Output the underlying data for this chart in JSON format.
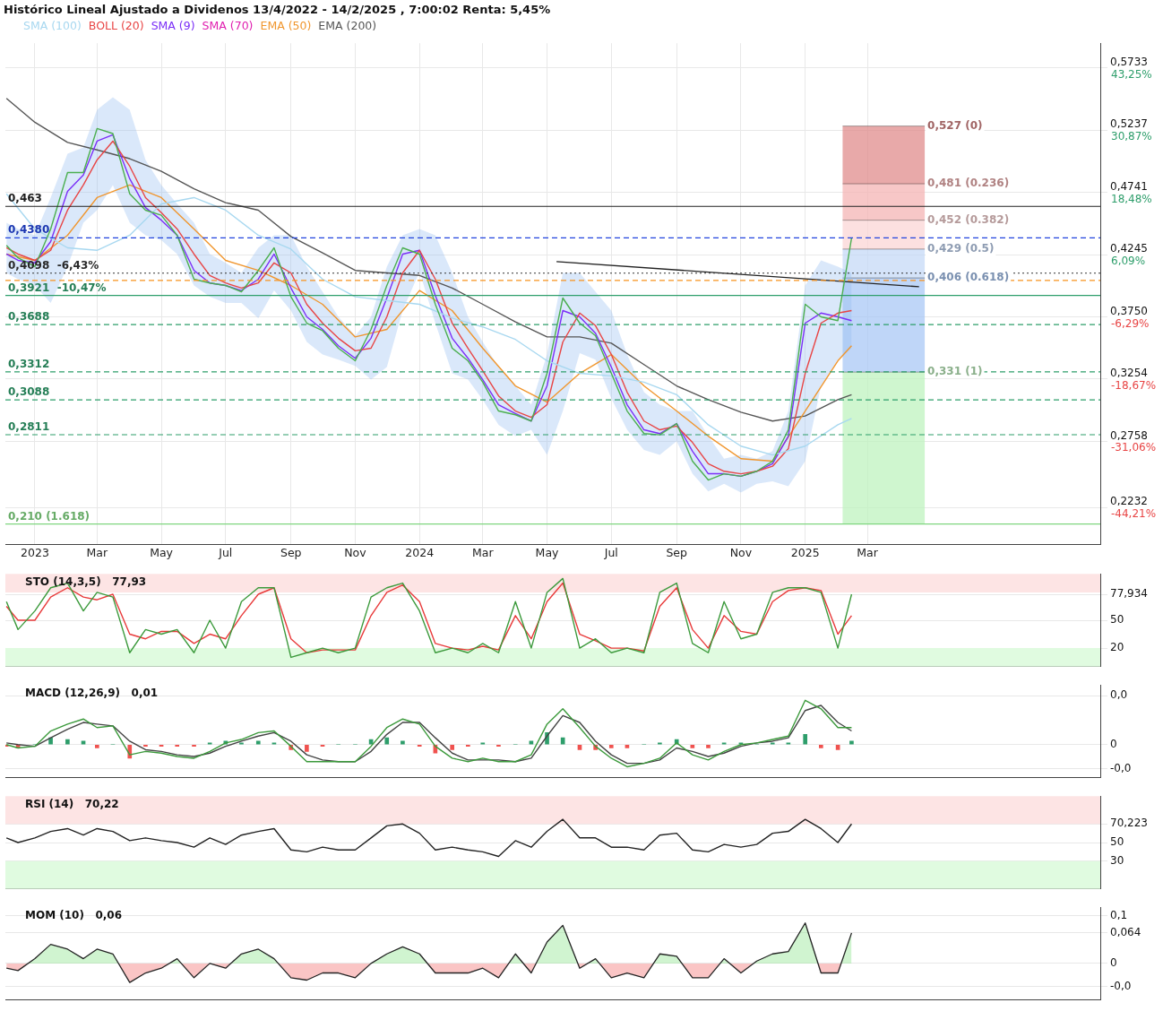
{
  "chart_data": [
    {
      "type": "line",
      "title": "Histórico Lineal Ajustado a Dividenos 13/4/2022 - 14/2/2025 , 7:00:02 Renta: 5,45%",
      "legend": "top left",
      "grid": true,
      "marker": "none",
      "x": [
        "2022-12-05",
        "2022-12-16",
        "2023-01-01",
        "2023-01-16",
        "2023-02-01",
        "2023-02-16",
        "2023-03-01",
        "2023-03-16",
        "2023-04-01",
        "2023-04-16",
        "2023-05-01",
        "2023-05-16",
        "2023-06-01",
        "2023-06-16",
        "2023-07-01",
        "2023-07-16",
        "2023-08-01",
        "2023-08-16",
        "2023-09-01",
        "2023-09-16",
        "2023-10-01",
        "2023-10-16",
        "2023-11-01",
        "2023-11-16",
        "2023-12-01",
        "2023-12-16",
        "2024-01-01",
        "2024-01-16",
        "2024-02-01",
        "2024-02-16",
        "2024-03-01",
        "2024-03-16",
        "2024-04-01",
        "2024-04-16",
        "2024-05-01",
        "2024-05-16",
        "2024-06-01",
        "2024-06-16",
        "2024-07-01",
        "2024-07-16",
        "2024-08-01",
        "2024-08-16",
        "2024-09-01",
        "2024-09-16",
        "2024-10-01",
        "2024-10-16",
        "2024-11-01",
        "2024-11-16",
        "2024-12-01",
        "2024-12-16",
        "2025-01-01",
        "2025-01-16",
        "2025-02-01",
        "2025-02-14"
      ],
      "xlim": [
        "2022-12-04",
        "2025-10-08"
      ],
      "xticks": [
        {
          "value": "2023-01-01",
          "label": "2023"
        },
        {
          "value": "2023-03-01",
          "label": "Mar"
        },
        {
          "value": "2023-05-01",
          "label": "May"
        },
        {
          "value": "2023-07-01",
          "label": "Jul"
        },
        {
          "value": "2023-09-01",
          "label": "Sep"
        },
        {
          "value": "2023-11-01",
          "label": "Nov"
        },
        {
          "value": "2024-01-01",
          "label": "2024"
        },
        {
          "value": "2024-03-01",
          "label": "Mar"
        },
        {
          "value": "2024-05-01",
          "label": "May"
        },
        {
          "value": "2024-07-01",
          "label": "Jul"
        },
        {
          "value": "2024-09-01",
          "label": "Sep"
        },
        {
          "value": "2024-11-01",
          "label": "Nov"
        },
        {
          "value": "2025-01-01",
          "label": "2025"
        },
        {
          "value": "2025-03-01",
          "label": "Mar"
        }
      ],
      "ylim": [
        0.194,
        0.593
      ],
      "yticks": [
        {
          "value": 0.2232,
          "label": "0,2232"
        },
        {
          "value": 0.2758,
          "label": "0,2758"
        },
        {
          "value": 0.3254,
          "label": "0,3254"
        },
        {
          "value": 0.375,
          "label": "0,3750"
        },
        {
          "value": 0.4245,
          "label": "0,4245"
        },
        {
          "value": 0.4741,
          "label": "0,4741"
        },
        {
          "value": 0.5237,
          "label": "0,5237"
        },
        {
          "value": 0.5733,
          "label": "0,5733"
        }
      ],
      "y2lim": [
        -51.53,
        48.16
      ],
      "y2ticks": [
        {
          "value": -44.21,
          "label": "-44,21%"
        },
        {
          "value": -31.06,
          "label": "-31,06%"
        },
        {
          "value": -18.67,
          "label": "-18,67%"
        },
        {
          "value": -6.29,
          "label": "-6,29%"
        },
        {
          "value": 6.09,
          "label": "6,09%"
        },
        {
          "value": 18.48,
          "label": "18,48%"
        },
        {
          "value": 30.87,
          "label": "30,87%"
        },
        {
          "value": 43.25,
          "label": "43,25%"
        }
      ],
      "series": [
        {
          "color": "#4caf50",
          "values": [
            0.432,
            0.422,
            0.415,
            0.445,
            0.49,
            0.49,
            0.525,
            0.521,
            0.473,
            0.46,
            0.456,
            0.44,
            0.405,
            0.402,
            0.4,
            0.395,
            0.412,
            0.43,
            0.391,
            0.37,
            0.364,
            0.35,
            0.34,
            0.365,
            0.4,
            0.43,
            0.425,
            0.385,
            0.35,
            0.34,
            0.323,
            0.3,
            0.297,
            0.292,
            0.33,
            0.39,
            0.37,
            0.36,
            0.33,
            0.3,
            0.282,
            0.281,
            0.29,
            0.26,
            0.245,
            0.25,
            0.248,
            0.252,
            0.26,
            0.285,
            0.385,
            0.375,
            0.372,
            0.438
          ]
        },
        {
          "name": "SMA (100)",
          "color": "#a8d8f0",
          "x": [
            "2022-12-05",
            "2023-01-01",
            "2023-02-01",
            "2023-03-01",
            "2023-04-01",
            "2023-05-01",
            "2023-06-01",
            "2023-07-01",
            "2023-08-01",
            "2023-09-01",
            "2023-10-01",
            "2023-11-01",
            "2023-12-01",
            "2024-01-01",
            "2024-02-01",
            "2024-03-01",
            "2024-04-01",
            "2024-05-01",
            "2024-06-01",
            "2024-07-01",
            "2024-08-01",
            "2024-09-01",
            "2024-10-01",
            "2024-11-01",
            "2024-12-01",
            "2025-01-01",
            "2025-02-01",
            "2025-02-14"
          ],
          "values": [
            0.473,
            0.445,
            0.43,
            0.428,
            0.44,
            0.465,
            0.47,
            0.46,
            0.44,
            0.429,
            0.405,
            0.391,
            0.388,
            0.385,
            0.374,
            0.367,
            0.357,
            0.34,
            0.33,
            0.328,
            0.323,
            0.313,
            0.289,
            0.272,
            0.265,
            0.272,
            0.289,
            0.294
          ]
        },
        {
          "name": "BOLL (20)",
          "color": "#e84545",
          "values": [
            0.43,
            0.425,
            0.42,
            0.428,
            0.46,
            0.48,
            0.5,
            0.515,
            0.495,
            0.47,
            0.458,
            0.445,
            0.425,
            0.408,
            0.402,
            0.398,
            0.402,
            0.418,
            0.41,
            0.385,
            0.37,
            0.358,
            0.348,
            0.35,
            0.375,
            0.41,
            0.428,
            0.405,
            0.37,
            0.35,
            0.332,
            0.312,
            0.3,
            0.295,
            0.305,
            0.355,
            0.378,
            0.368,
            0.345,
            0.315,
            0.292,
            0.285,
            0.288,
            0.275,
            0.258,
            0.252,
            0.25,
            0.252,
            0.256,
            0.27,
            0.33,
            0.37,
            0.378,
            0.38
          ],
          "upper": [
            0.45,
            0.445,
            0.44,
            0.47,
            0.505,
            0.51,
            0.54,
            0.55,
            0.54,
            0.5,
            0.48,
            0.465,
            0.45,
            0.425,
            0.418,
            0.41,
            0.43,
            0.44,
            0.44,
            0.415,
            0.395,
            0.375,
            0.36,
            0.375,
            0.415,
            0.44,
            0.445,
            0.44,
            0.41,
            0.375,
            0.355,
            0.335,
            0.32,
            0.305,
            0.345,
            0.41,
            0.41,
            0.395,
            0.38,
            0.345,
            0.315,
            0.305,
            0.3,
            0.3,
            0.28,
            0.262,
            0.265,
            0.262,
            0.268,
            0.3,
            0.4,
            0.42,
            0.415,
            0.41
          ],
          "lower": [
            0.41,
            0.405,
            0.4,
            0.386,
            0.415,
            0.45,
            0.46,
            0.48,
            0.45,
            0.44,
            0.436,
            0.425,
            0.4,
            0.391,
            0.386,
            0.386,
            0.374,
            0.396,
            0.38,
            0.355,
            0.345,
            0.341,
            0.336,
            0.325,
            0.335,
            0.38,
            0.411,
            0.37,
            0.33,
            0.325,
            0.309,
            0.289,
            0.28,
            0.285,
            0.265,
            0.3,
            0.346,
            0.341,
            0.31,
            0.285,
            0.269,
            0.265,
            0.276,
            0.25,
            0.236,
            0.242,
            0.235,
            0.242,
            0.244,
            0.24,
            0.26,
            0.32,
            0.341,
            0.35
          ]
        },
        {
          "name": "SMA (9)",
          "color": "#7b2ff7",
          "values": [
            0.425,
            0.42,
            0.418,
            0.435,
            0.475,
            0.488,
            0.515,
            0.52,
            0.485,
            0.462,
            0.452,
            0.44,
            0.412,
            0.402,
            0.4,
            0.396,
            0.405,
            0.425,
            0.398,
            0.375,
            0.365,
            0.352,
            0.342,
            0.358,
            0.39,
            0.425,
            0.428,
            0.392,
            0.358,
            0.342,
            0.325,
            0.305,
            0.298,
            0.292,
            0.32,
            0.38,
            0.375,
            0.362,
            0.335,
            0.305,
            0.285,
            0.282,
            0.29,
            0.268,
            0.25,
            0.25,
            0.248,
            0.252,
            0.258,
            0.28,
            0.37,
            0.378,
            0.375,
            0.372
          ]
        },
        {
          "name": "SMA (70)",
          "color": "#e020b0",
          "values": [
            null,
            null,
            null,
            null,
            null,
            null,
            null,
            null,
            null,
            null,
            null,
            null,
            null,
            null,
            null,
            null,
            null,
            null,
            null,
            null,
            null,
            null,
            null,
            null,
            null,
            null,
            null,
            null,
            null,
            null,
            null,
            null,
            null,
            null,
            null,
            null,
            null,
            null,
            null,
            null,
            null,
            null,
            null,
            null,
            null,
            null,
            null,
            null,
            null,
            null,
            null,
            null,
            null,
            null
          ]
        },
        {
          "name": "EMA (50)",
          "color": "#f0962e",
          "x": [
            "2022-12-05",
            "2023-01-01",
            "2023-02-01",
            "2023-03-01",
            "2023-04-01",
            "2023-05-01",
            "2023-06-01",
            "2023-07-01",
            "2023-08-01",
            "2023-09-01",
            "2023-10-01",
            "2023-11-01",
            "2023-12-01",
            "2024-01-01",
            "2024-02-01",
            "2024-03-01",
            "2024-04-01",
            "2024-05-01",
            "2024-06-01",
            "2024-07-01",
            "2024-08-01",
            "2024-09-01",
            "2024-10-01",
            "2024-11-01",
            "2024-12-01",
            "2025-01-01",
            "2025-02-01",
            "2025-02-14"
          ],
          "values": [
            0.425,
            0.42,
            0.44,
            0.47,
            0.48,
            0.47,
            0.445,
            0.42,
            0.412,
            0.4,
            0.385,
            0.359,
            0.365,
            0.396,
            0.38,
            0.35,
            0.32,
            0.307,
            0.33,
            0.345,
            0.32,
            0.3,
            0.28,
            0.262,
            0.26,
            0.3,
            0.34,
            0.352
          ]
        },
        {
          "name": "EMA (200)",
          "color": "#555555",
          "x": [
            "2022-12-05",
            "2023-01-01",
            "2023-02-01",
            "2023-03-01",
            "2023-04-01",
            "2023-05-01",
            "2023-06-01",
            "2023-07-01",
            "2023-08-01",
            "2023-09-01",
            "2023-10-01",
            "2023-11-01",
            "2023-12-01",
            "2024-01-01",
            "2024-02-01",
            "2024-03-01",
            "2024-04-01",
            "2024-05-01",
            "2024-06-01",
            "2024-07-01",
            "2024-08-01",
            "2024-09-01",
            "2024-10-01",
            "2024-11-01",
            "2024-12-01",
            "2025-01-01",
            "2025-02-01",
            "2025-02-14"
          ],
          "values": [
            0.549,
            0.53,
            0.514,
            0.508,
            0.501,
            0.491,
            0.477,
            0.466,
            0.46,
            0.439,
            0.426,
            0.412,
            0.41,
            0.408,
            0.398,
            0.385,
            0.371,
            0.359,
            0.359,
            0.354,
            0.337,
            0.32,
            0.309,
            0.299,
            0.292,
            0.296,
            0.309,
            0.313
          ]
        },
        {
          "type": "line",
          "color": "#222222",
          "x": [
            "2024-05-10",
            "2025-04-19"
          ],
          "values": [
            0.419,
            0.399
          ]
        }
      ],
      "ref_lines": [
        {
          "axis": "y",
          "value": 0.463,
          "label": "0,463",
          "color": "#222222",
          "line_style": "solid"
        },
        {
          "axis": "y",
          "value": 0.438,
          "label": "0,4380",
          "color": "#2244dd",
          "line_style": "dashed"
        },
        {
          "axis": "y",
          "value": 0.4098,
          "label": "0,4098  -6,43%",
          "color": "#333333",
          "line_style": "dotted"
        },
        {
          "axis": "y",
          "value": 0.404,
          "color": "#f7931e",
          "line_style": "dashed"
        },
        {
          "axis": "y",
          "value": 0.3921,
          "label": "0,3921  -10,47%",
          "color": "#2e9e6b",
          "line_style": "solid"
        },
        {
          "axis": "y",
          "value": 0.3688,
          "label": "0,3688",
          "color": "#2e9e6b",
          "line_style": "dashed"
        },
        {
          "axis": "y",
          "value": 0.3312,
          "label": "0,3312",
          "color": "#2e9e6b",
          "line_style": "dashed"
        },
        {
          "axis": "y",
          "value": 0.3088,
          "label": "0,3088",
          "color": "#2e9e6b",
          "line_style": "dashed"
        },
        {
          "axis": "y",
          "value": 0.2811,
          "label": "0,2811",
          "color": "#2e9e6b",
          "line_style": "dashed"
        },
        {
          "axis": "y",
          "value": 0.21,
          "label": "0,210 (1.618)",
          "color": "#7fd67f",
          "line_style": "solid"
        }
      ],
      "bands": [
        {
          "axis": "y",
          "from": 0.481,
          "to": 0.527,
          "label": "0,527 (0)",
          "color": "#e08c8c"
        },
        {
          "axis": "y",
          "from": 0.452,
          "to": 0.481,
          "label": "0,481 (0.236)",
          "color": "#f4b4b4"
        },
        {
          "axis": "y",
          "from": 0.429,
          "to": 0.452,
          "label": "0,452 (0.382)",
          "color": "#fbd6d6"
        },
        {
          "axis": "y",
          "from": 0.406,
          "to": 0.429,
          "label": "0,429 (0.5)",
          "color": "#c5d9f7"
        },
        {
          "axis": "y",
          "from": 0.331,
          "to": 0.406,
          "label": "0,406 (0.618)",
          "color": "#a9c8f5"
        },
        {
          "axis": "y",
          "from": 0.21,
          "to": 0.331,
          "label": "0,331 (1)",
          "color": "#bff3bf"
        }
      ]
    },
    {
      "type": "line",
      "title": "STO (14,3,5)   77,93",
      "grid": true,
      "marker": "none",
      "tick_labels": "y",
      "x": [
        "2022-12-05",
        "2022-12-16",
        "2023-01-01",
        "2023-01-16",
        "2023-02-01",
        "2023-02-16",
        "2023-03-01",
        "2023-03-16",
        "2023-04-01",
        "2023-04-16",
        "2023-05-01",
        "2023-05-16",
        "2023-06-01",
        "2023-06-16",
        "2023-07-01",
        "2023-07-16",
        "2023-08-01",
        "2023-08-16",
        "2023-09-01",
        "2023-09-16",
        "2023-10-01",
        "2023-10-16",
        "2023-11-01",
        "2023-11-16",
        "2023-12-01",
        "2023-12-16",
        "2024-01-01",
        "2024-01-16",
        "2024-02-01",
        "2024-02-16",
        "2024-03-01",
        "2024-03-16",
        "2024-04-01",
        "2024-04-16",
        "2024-05-01",
        "2024-05-16",
        "2024-06-01",
        "2024-06-16",
        "2024-07-01",
        "2024-07-16",
        "2024-08-01",
        "2024-08-16",
        "2024-09-01",
        "2024-09-16",
        "2024-10-01",
        "2024-10-16",
        "2024-11-01",
        "2024-11-16",
        "2024-12-01",
        "2024-12-16",
        "2025-01-01",
        "2025-01-16",
        "2025-02-01",
        "2025-02-14"
      ],
      "xlim": [
        "2022-12-04",
        "2025-10-08"
      ],
      "xticks": [
        {
          "value": "2023-01-01",
          "label": null
        },
        {
          "value": "2023-03-01",
          "label": null
        },
        {
          "value": "2023-05-01",
          "label": null
        },
        {
          "value": "2023-07-01",
          "label": null
        },
        {
          "value": "2023-09-01",
          "label": null
        },
        {
          "value": "2023-11-01",
          "label": null
        },
        {
          "value": "2024-01-01",
          "label": null
        },
        {
          "value": "2024-03-01",
          "label": null
        },
        {
          "value": "2024-05-01",
          "label": null
        },
        {
          "value": "2024-07-01",
          "label": null
        },
        {
          "value": "2024-09-01",
          "label": null
        },
        {
          "value": "2024-11-01",
          "label": null
        },
        {
          "value": "2025-01-01",
          "label": null
        },
        {
          "value": "2025-03-01",
          "label": null
        }
      ],
      "ylim": [
        0,
        100
      ],
      "yticks": [
        20,
        50,
        {
          "value": 77.934,
          "label": "77,934"
        }
      ],
      "series": [
        {
          "color": "#3c9a3c",
          "values": [
            70,
            40,
            60,
            85,
            90,
            60,
            80,
            75,
            15,
            40,
            35,
            40,
            15,
            50,
            20,
            70,
            85,
            85,
            10,
            15,
            20,
            15,
            20,
            75,
            85,
            90,
            60,
            15,
            20,
            15,
            25,
            15,
            70,
            20,
            80,
            95,
            20,
            30,
            15,
            20,
            15,
            80,
            90,
            25,
            15,
            70,
            30,
            35,
            80,
            85,
            85,
            80,
            20,
            78
          ]
        },
        {
          "color": "#e83a3a",
          "values": [
            65,
            50,
            50,
            75,
            85,
            75,
            72,
            78,
            35,
            30,
            38,
            38,
            25,
            35,
            30,
            55,
            78,
            85,
            30,
            15,
            18,
            18,
            18,
            55,
            80,
            88,
            70,
            25,
            20,
            18,
            22,
            18,
            55,
            30,
            70,
            90,
            35,
            28,
            20,
            20,
            17,
            65,
            85,
            40,
            20,
            55,
            38,
            35,
            70,
            82,
            85,
            82,
            35,
            55
          ]
        }
      ],
      "bands": [
        {
          "axis": "y",
          "from": 80,
          "to": 100,
          "color": "#fde4e4"
        },
        {
          "axis": "y",
          "from": 0,
          "to": 20,
          "color": "#e0fbe0"
        }
      ]
    },
    {
      "type": "line",
      "title": "MACD (12,26,9)   0,01",
      "grid": true,
      "marker": "none",
      "tick_labels": "y",
      "x": [
        "2022-12-05",
        "2022-12-16",
        "2023-01-01",
        "2023-01-16",
        "2023-02-01",
        "2023-02-16",
        "2023-03-01",
        "2023-03-16",
        "2023-04-01",
        "2023-04-16",
        "2023-05-01",
        "2023-05-16",
        "2023-06-01",
        "2023-06-16",
        "2023-07-01",
        "2023-07-16",
        "2023-08-01",
        "2023-08-16",
        "2023-09-01",
        "2023-09-16",
        "2023-10-01",
        "2023-10-16",
        "2023-11-01",
        "2023-11-16",
        "2023-12-01",
        "2023-12-16",
        "2024-01-01",
        "2024-01-16",
        "2024-02-01",
        "2024-02-16",
        "2024-03-01",
        "2024-03-16",
        "2024-04-01",
        "2024-04-16",
        "2024-05-01",
        "2024-05-16",
        "2024-06-01",
        "2024-06-16",
        "2024-07-01",
        "2024-07-16",
        "2024-08-01",
        "2024-08-16",
        "2024-09-01",
        "2024-09-16",
        "2024-10-01",
        "2024-10-16",
        "2024-11-01",
        "2024-11-16",
        "2024-12-01",
        "2024-12-16",
        "2025-01-01",
        "2025-01-16",
        "2025-02-01",
        "2025-02-14"
      ],
      "xlim": [
        "2022-12-04",
        "2025-10-08"
      ],
      "xticks": [
        {
          "value": "2023-01-01",
          "label": null
        },
        {
          "value": "2023-03-01",
          "label": null
        },
        {
          "value": "2023-05-01",
          "label": null
        },
        {
          "value": "2023-07-01",
          "label": null
        },
        {
          "value": "2023-09-01",
          "label": null
        },
        {
          "value": "2023-11-01",
          "label": null
        },
        {
          "value": "2024-01-01",
          "label": null
        },
        {
          "value": "2024-03-01",
          "label": null
        },
        {
          "value": "2024-05-01",
          "label": null
        },
        {
          "value": "2024-07-01",
          "label": null
        },
        {
          "value": "2024-09-01",
          "label": null
        },
        {
          "value": "2024-11-01",
          "label": null
        },
        {
          "value": "2025-01-01",
          "label": null
        },
        {
          "value": "2025-03-01",
          "label": null
        }
      ],
      "ylim": [
        -0.0195,
        0.035
      ],
      "yticks": [
        {
          "value": -0.0141,
          "label": "-0,0"
        },
        0,
        {
          "value": 0.0286,
          "label": "0,0"
        }
      ],
      "series": [
        {
          "type": "bar",
          "values": [
            -0.001,
            -0.002,
            0.0,
            0.004,
            0.003,
            0.002,
            -0.002,
            0.0,
            -0.008,
            -0.001,
            -0.001,
            -0.001,
            -0.001,
            0.001,
            0.002,
            0.001,
            0.002,
            0.001,
            -0.003,
            -0.004,
            -0.001,
            0.0,
            0.0,
            0.003,
            0.004,
            0.002,
            -0.001,
            -0.005,
            -0.003,
            -0.001,
            0.001,
            -0.001,
            0.0,
            0.002,
            0.007,
            0.004,
            -0.003,
            -0.003,
            -0.002,
            -0.002,
            0.0,
            0.001,
            0.003,
            -0.002,
            -0.002,
            0.001,
            0.001,
            0.0,
            0.001,
            0.001,
            0.006,
            -0.002,
            -0.003,
            0.002
          ],
          "colors": [
            "#f0524f",
            "#f0524f",
            "#2e9e6b",
            "#2e9e6b",
            "#2e9e6b",
            "#2e9e6b",
            "#f0524f",
            "#2e9e6b",
            "#f0524f",
            "#f0524f",
            "#f0524f",
            "#f0524f",
            "#f0524f",
            "#2e9e6b",
            "#2e9e6b",
            "#2e9e6b",
            "#2e9e6b",
            "#2e9e6b",
            "#f0524f",
            "#f0524f",
            "#f0524f",
            "#2e9e6b",
            "#2e9e6b",
            "#2e9e6b",
            "#2e9e6b",
            "#2e9e6b",
            "#f0524f",
            "#f0524f",
            "#f0524f",
            "#f0524f",
            "#2e9e6b",
            "#f0524f",
            "#2e9e6b",
            "#2e9e6b",
            "#2e9e6b",
            "#2e9e6b",
            "#f0524f",
            "#f0524f",
            "#f0524f",
            "#f0524f",
            "#2e9e6b",
            "#2e9e6b",
            "#2e9e6b",
            "#f0524f",
            "#f0524f",
            "#2e9e6b",
            "#2e9e6b",
            "#2e9e6b",
            "#2e9e6b",
            "#2e9e6b",
            "#2e9e6b",
            "#f0524f",
            "#f0524f",
            "#2e9e6b"
          ]
        },
        {
          "color": "#3c9a3c",
          "values": [
            0.0,
            -0.002,
            -0.001,
            0.008,
            0.012,
            0.015,
            0.01,
            0.011,
            -0.006,
            -0.004,
            -0.005,
            -0.007,
            -0.008,
            -0.004,
            0.001,
            0.003,
            0.007,
            0.008,
            -0.001,
            -0.01,
            -0.01,
            -0.01,
            -0.01,
            -0.001,
            0.01,
            0.015,
            0.012,
            -0.001,
            -0.008,
            -0.01,
            -0.008,
            -0.01,
            -0.01,
            -0.006,
            0.012,
            0.021,
            0.01,
            -0.001,
            -0.008,
            -0.013,
            -0.011,
            -0.008,
            0.001,
            -0.006,
            -0.009,
            -0.004,
            0.0,
            0.001,
            0.003,
            0.005,
            0.026,
            0.021,
            0.01,
            0.01
          ]
        },
        {
          "color": "#444444",
          "values": [
            0.001,
            0.0,
            -0.001,
            0.004,
            0.009,
            0.013,
            0.012,
            0.011,
            0.002,
            -0.003,
            -0.004,
            -0.006,
            -0.007,
            -0.005,
            -0.001,
            0.002,
            0.005,
            0.007,
            0.002,
            -0.006,
            -0.009,
            -0.01,
            -0.01,
            -0.004,
            0.006,
            0.013,
            0.013,
            0.004,
            -0.005,
            -0.009,
            -0.009,
            -0.009,
            -0.01,
            -0.008,
            0.005,
            0.017,
            0.013,
            0.002,
            -0.006,
            -0.011,
            -0.011,
            -0.009,
            -0.002,
            -0.004,
            -0.007,
            -0.005,
            -0.001,
            0.001,
            0.002,
            0.004,
            0.02,
            0.023,
            0.013,
            0.008
          ]
        }
      ]
    },
    {
      "type": "line",
      "title": "RSI (14)   70,22",
      "grid": true,
      "marker": "none",
      "tick_labels": "y",
      "x": [
        "2022-12-05",
        "2022-12-16",
        "2023-01-01",
        "2023-01-16",
        "2023-02-01",
        "2023-02-16",
        "2023-03-01",
        "2023-03-16",
        "2023-04-01",
        "2023-04-16",
        "2023-05-01",
        "2023-05-16",
        "2023-06-01",
        "2023-06-16",
        "2023-07-01",
        "2023-07-16",
        "2023-08-01",
        "2023-08-16",
        "2023-09-01",
        "2023-09-16",
        "2023-10-01",
        "2023-10-16",
        "2023-11-01",
        "2023-11-16",
        "2023-12-01",
        "2023-12-16",
        "2024-01-01",
        "2024-01-16",
        "2024-02-01",
        "2024-02-16",
        "2024-03-01",
        "2024-03-16",
        "2024-04-01",
        "2024-04-16",
        "2024-05-01",
        "2024-05-16",
        "2024-06-01",
        "2024-06-16",
        "2024-07-01",
        "2024-07-16",
        "2024-08-01",
        "2024-08-16",
        "2024-09-01",
        "2024-09-16",
        "2024-10-01",
        "2024-10-16",
        "2024-11-01",
        "2024-11-16",
        "2024-12-01",
        "2024-12-16",
        "2025-01-01",
        "2025-01-16",
        "2025-02-01",
        "2025-02-14"
      ],
      "xlim": [
        "2022-12-04",
        "2025-10-08"
      ],
      "xticks": [
        {
          "value": "2023-01-01",
          "label": null
        },
        {
          "value": "2023-03-01",
          "label": null
        },
        {
          "value": "2023-05-01",
          "label": null
        },
        {
          "value": "2023-07-01",
          "label": null
        },
        {
          "value": "2023-09-01",
          "label": null
        },
        {
          "value": "2023-11-01",
          "label": null
        },
        {
          "value": "2024-01-01",
          "label": null
        },
        {
          "value": "2024-03-01",
          "label": null
        },
        {
          "value": "2024-05-01",
          "label": null
        },
        {
          "value": "2024-07-01",
          "label": null
        },
        {
          "value": "2024-09-01",
          "label": null
        },
        {
          "value": "2024-11-01",
          "label": null
        },
        {
          "value": "2025-01-01",
          "label": null
        },
        {
          "value": "2025-03-01",
          "label": null
        }
      ],
      "ylim": [
        0,
        100
      ],
      "yticks": [
        30,
        50,
        {
          "value": 70.223,
          "label": "70,223"
        }
      ],
      "series": [
        {
          "color": "#222222",
          "values": [
            55,
            50,
            55,
            62,
            65,
            58,
            65,
            62,
            52,
            55,
            52,
            50,
            45,
            55,
            48,
            58,
            62,
            65,
            42,
            40,
            45,
            42,
            42,
            55,
            68,
            70,
            60,
            42,
            45,
            42,
            40,
            35,
            52,
            45,
            62,
            75,
            55,
            55,
            45,
            45,
            42,
            58,
            60,
            42,
            40,
            48,
            45,
            48,
            60,
            62,
            75,
            65,
            50,
            70
          ]
        }
      ],
      "bands": [
        {
          "axis": "y",
          "from": 70,
          "to": 100,
          "color": "#fde4e4"
        },
        {
          "axis": "y",
          "from": 0,
          "to": 30,
          "color": "#e0fbe0"
        }
      ]
    },
    {
      "type": "area",
      "title": "MOM (10)   0,06",
      "grid": true,
      "marker": "none",
      "tick_labels": "y",
      "x": [
        "2022-12-05",
        "2022-12-16",
        "2023-01-01",
        "2023-01-16",
        "2023-02-01",
        "2023-02-16",
        "2023-03-01",
        "2023-03-16",
        "2023-04-01",
        "2023-04-16",
        "2023-05-01",
        "2023-05-16",
        "2023-06-01",
        "2023-06-16",
        "2023-07-01",
        "2023-07-16",
        "2023-08-01",
        "2023-08-16",
        "2023-09-01",
        "2023-09-16",
        "2023-10-01",
        "2023-10-16",
        "2023-11-01",
        "2023-11-16",
        "2023-12-01",
        "2023-12-16",
        "2024-01-01",
        "2024-01-16",
        "2024-02-01",
        "2024-02-16",
        "2024-03-01",
        "2024-03-16",
        "2024-04-01",
        "2024-04-16",
        "2024-05-01",
        "2024-05-16",
        "2024-06-01",
        "2024-06-16",
        "2024-07-01",
        "2024-07-16",
        "2024-08-01",
        "2024-08-16",
        "2024-09-01",
        "2024-09-16",
        "2024-10-01",
        "2024-10-16",
        "2024-11-01",
        "2024-11-16",
        "2024-12-01",
        "2024-12-16",
        "2025-01-01",
        "2025-01-16",
        "2025-02-01",
        "2025-02-14"
      ],
      "xlim": [
        "2022-12-04",
        "2025-10-08"
      ],
      "xticks": [
        {
          "value": "2023-01-01",
          "label": null
        },
        {
          "value": "2023-03-01",
          "label": null
        },
        {
          "value": "2023-05-01",
          "label": null
        },
        {
          "value": "2023-07-01",
          "label": null
        },
        {
          "value": "2023-09-01",
          "label": null
        },
        {
          "value": "2023-11-01",
          "label": null
        },
        {
          "value": "2024-01-01",
          "label": null
        },
        {
          "value": "2024-03-01",
          "label": null
        },
        {
          "value": "2024-05-01",
          "label": null
        },
        {
          "value": "2024-07-01",
          "label": null
        },
        {
          "value": "2024-09-01",
          "label": null
        },
        {
          "value": "2024-11-01",
          "label": null
        },
        {
          "value": "2025-01-01",
          "label": null
        },
        {
          "value": "2025-03-01",
          "label": null
        }
      ],
      "ylim": [
        -0.077,
        0.118
      ],
      "yticks": [
        {
          "value": -0.049,
          "label": "-0,0"
        },
        0,
        {
          "value": 0.064,
          "label": "0,064"
        },
        {
          "value": 0.1,
          "label": "0,1"
        }
      ],
      "series": [
        {
          "color": "#222222",
          "values": [
            -0.01,
            -0.015,
            0.01,
            0.04,
            0.03,
            0.01,
            0.03,
            0.02,
            -0.04,
            -0.02,
            -0.01,
            0.01,
            -0.03,
            0,
            -0.01,
            0.02,
            0.03,
            0.01,
            -0.03,
            -0.035,
            -0.02,
            -0.02,
            -0.03,
            0,
            0.02,
            0.035,
            0.02,
            -0.02,
            -0.02,
            -0.02,
            -0.01,
            -0.03,
            0.02,
            -0.02,
            0.045,
            0.08,
            -0.01,
            0.01,
            -0.03,
            -0.02,
            -0.03,
            0.02,
            0.015,
            -0.03,
            -0.03,
            0.01,
            -0.02,
            0.005,
            0.02,
            0.025,
            0.085,
            -0.02,
            -0.02,
            0.064
          ]
        }
      ]
    }
  ]
}
